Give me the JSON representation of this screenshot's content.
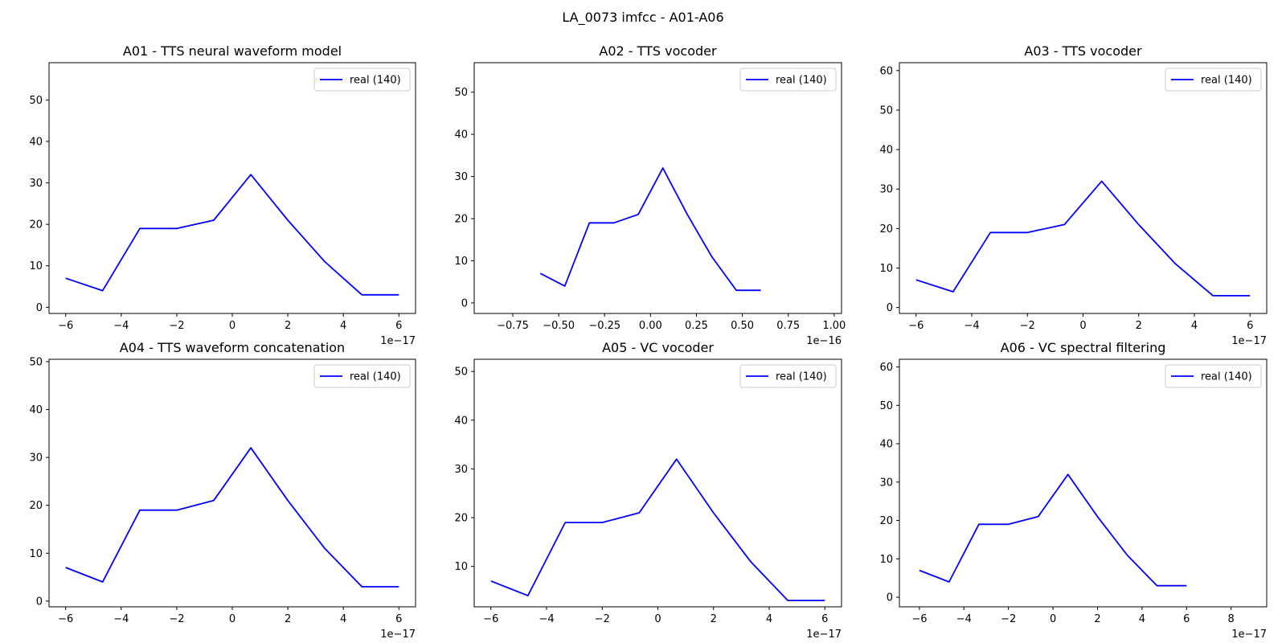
{
  "figure": {
    "suptitle": "LA_0073 imfcc - A01-A06"
  },
  "chart_data": [
    {
      "type": "line",
      "title": "A01 - TTS neural waveform model",
      "x_offset_label": "1e−17",
      "x": [
        -6,
        -4.67,
        -3.33,
        -2,
        -0.67,
        0.67,
        2,
        3.33,
        4.67,
        6
      ],
      "series": [
        {
          "name": "real (140)",
          "color": "#0000ff",
          "values": [
            7,
            4,
            19,
            19,
            21,
            32,
            21,
            11,
            3,
            3
          ]
        }
      ],
      "xlim": [
        -6.6,
        6.6
      ],
      "ylim": [
        -1.5,
        59
      ],
      "xticks": [
        -6,
        -4,
        -2,
        0,
        2,
        4,
        6
      ],
      "xtick_labels": [
        "−6",
        "−4",
        "−2",
        "0",
        "2",
        "4",
        "6"
      ],
      "yticks": [
        0,
        10,
        20,
        30,
        40,
        50
      ],
      "ytick_labels": [
        "0",
        "10",
        "20",
        "30",
        "40",
        "50"
      ],
      "legend": "top-right",
      "grid": false
    },
    {
      "type": "line",
      "title": "A02 - TTS vocoder",
      "x_offset_label": "1e−16",
      "x": [
        -0.6,
        -0.467,
        -0.333,
        -0.2,
        -0.067,
        0.067,
        0.2,
        0.333,
        0.467,
        0.6
      ],
      "series": [
        {
          "name": "real (140)",
          "color": "#0000ff",
          "values": [
            7,
            4,
            19,
            19,
            21,
            32,
            21,
            11,
            3,
            3
          ]
        }
      ],
      "xlim": [
        -0.96,
        1.04
      ],
      "ylim": [
        -2.5,
        57
      ],
      "xticks": [
        -0.75,
        -0.5,
        -0.25,
        0,
        0.25,
        0.5,
        0.75,
        1.0
      ],
      "xtick_labels": [
        "−0.75",
        "−0.50",
        "−0.25",
        "0.00",
        "0.25",
        "0.50",
        "0.75",
        "1.00"
      ],
      "yticks": [
        0,
        10,
        20,
        30,
        40,
        50
      ],
      "ytick_labels": [
        "0",
        "10",
        "20",
        "30",
        "40",
        "50"
      ],
      "legend": "top-right",
      "grid": false
    },
    {
      "type": "line",
      "title": "A03 - TTS vocoder",
      "x_offset_label": "1e−17",
      "x": [
        -6,
        -4.67,
        -3.33,
        -2,
        -0.67,
        0.67,
        2,
        3.33,
        4.67,
        6
      ],
      "series": [
        {
          "name": "real (140)",
          "color": "#0000ff",
          "values": [
            7,
            4,
            19,
            19,
            21,
            32,
            21,
            11,
            3,
            3
          ]
        }
      ],
      "xlim": [
        -6.6,
        6.6
      ],
      "ylim": [
        -1.5,
        62
      ],
      "xticks": [
        -6,
        -4,
        -2,
        0,
        2,
        4,
        6
      ],
      "xtick_labels": [
        "−6",
        "−4",
        "−2",
        "0",
        "2",
        "4",
        "6"
      ],
      "yticks": [
        0,
        10,
        20,
        30,
        40,
        50,
        60
      ],
      "ytick_labels": [
        "0",
        "10",
        "20",
        "30",
        "40",
        "50",
        "60"
      ],
      "legend": "top-right",
      "grid": false
    },
    {
      "type": "line",
      "title": "A04 - TTS waveform concatenation",
      "x_offset_label": "1e−17",
      "x": [
        -6,
        -4.67,
        -3.33,
        -2,
        -0.67,
        0.67,
        2,
        3.33,
        4.67,
        6
      ],
      "series": [
        {
          "name": "real (140)",
          "color": "#0000ff",
          "values": [
            7,
            4,
            19,
            19,
            21,
            32,
            21,
            11,
            3,
            3
          ]
        }
      ],
      "xlim": [
        -6.6,
        6.6
      ],
      "ylim": [
        -1.2,
        50.5
      ],
      "xticks": [
        -6,
        -4,
        -2,
        0,
        2,
        4,
        6
      ],
      "xtick_labels": [
        "−6",
        "−4",
        "−2",
        "0",
        "2",
        "4",
        "6"
      ],
      "yticks": [
        0,
        10,
        20,
        30,
        40,
        50
      ],
      "ytick_labels": [
        "0",
        "10",
        "20",
        "30",
        "40",
        "50"
      ],
      "legend": "top-right",
      "grid": false
    },
    {
      "type": "line",
      "title": "A05 - VC vocoder",
      "x_offset_label": "1e−17",
      "x": [
        -6,
        -4.67,
        -3.33,
        -2,
        -0.67,
        0.67,
        2,
        3.33,
        4.67,
        6
      ],
      "series": [
        {
          "name": "real (140)",
          "color": "#0000ff",
          "values": [
            7,
            4,
            19,
            19,
            21,
            32,
            21,
            11,
            3,
            3
          ]
        }
      ],
      "xlim": [
        -6.6,
        6.6
      ],
      "ylim": [
        1.7,
        52.5
      ],
      "xticks": [
        -6,
        -4,
        -2,
        0,
        2,
        4,
        6
      ],
      "xtick_labels": [
        "−6",
        "−4",
        "−2",
        "0",
        "2",
        "4",
        "6"
      ],
      "yticks": [
        10,
        20,
        30,
        40,
        50
      ],
      "ytick_labels": [
        "10",
        "20",
        "30",
        "40",
        "50"
      ],
      "legend": "top-right",
      "grid": false
    },
    {
      "type": "line",
      "title": "A06 - VC spectral filtering",
      "x_offset_label": "1e−17",
      "x": [
        -6,
        -4.67,
        -3.33,
        -2,
        -0.67,
        0.67,
        2,
        3.33,
        4.67,
        6
      ],
      "series": [
        {
          "name": "real (140)",
          "color": "#0000ff",
          "values": [
            7,
            4,
            19,
            19,
            21,
            32,
            21,
            11,
            3,
            3
          ]
        }
      ],
      "xlim": [
        -6.9,
        9.6
      ],
      "ylim": [
        -2.5,
        62
      ],
      "xticks": [
        -6,
        -4,
        -2,
        0,
        2,
        4,
        6,
        8
      ],
      "xtick_labels": [
        "−6",
        "−4",
        "−2",
        "0",
        "2",
        "4",
        "6",
        "8"
      ],
      "yticks": [
        0,
        10,
        20,
        30,
        40,
        50,
        60
      ],
      "ytick_labels": [
        "0",
        "10",
        "20",
        "30",
        "40",
        "50",
        "60"
      ],
      "legend": "top-right",
      "grid": false
    }
  ]
}
